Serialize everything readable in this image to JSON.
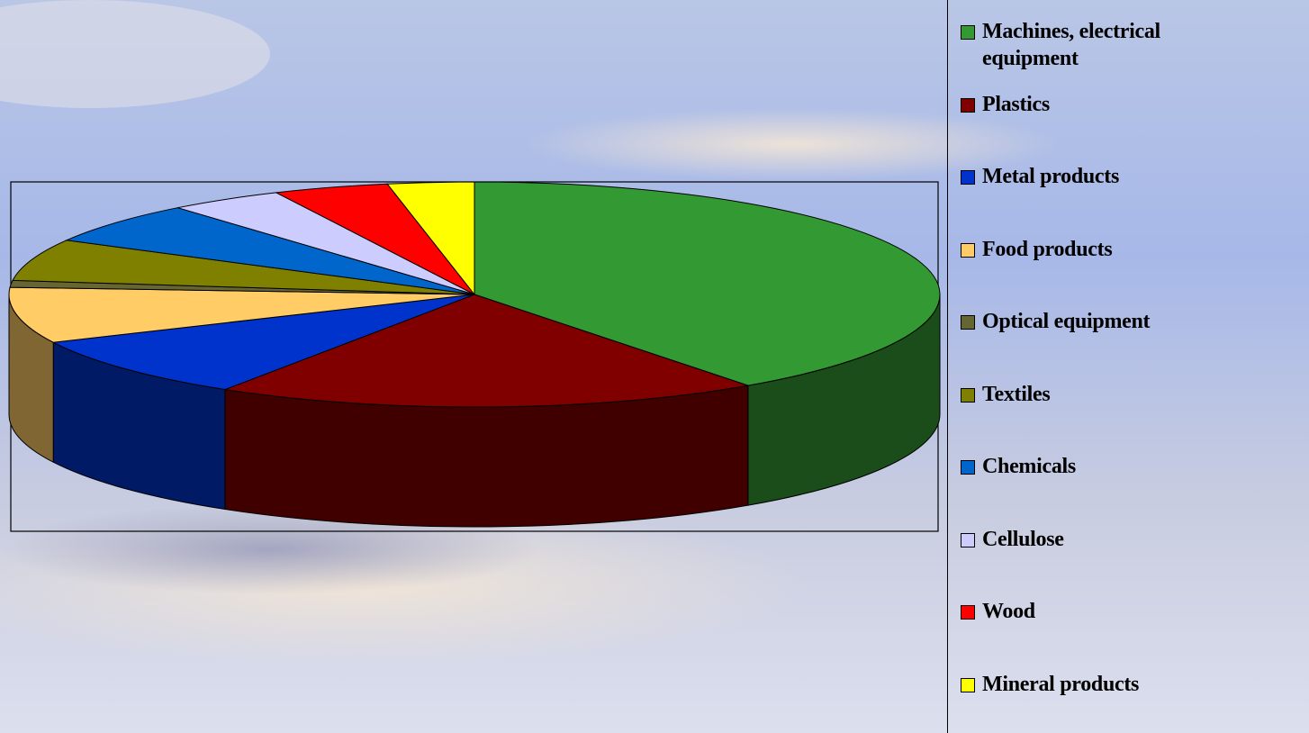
{
  "chart_data": {
    "type": "pie3d",
    "categories": [
      "Machines, electrical equipment",
      "Plastics",
      "Metal products",
      "Food products",
      "Optical equipment",
      "Textiles",
      "Chemicals",
      "Cellulose",
      "Wood",
      "Mineral products"
    ],
    "values": [
      40,
      19,
      9,
      8,
      1,
      6,
      6,
      4,
      4,
      3
    ],
    "colors": [
      "#339933",
      "#800000",
      "#0033cc",
      "#ffcc66",
      "#666633",
      "#808000",
      "#0066cc",
      "#ccccff",
      "#ff0000",
      "#ffff00"
    ],
    "legend": "right"
  }
}
